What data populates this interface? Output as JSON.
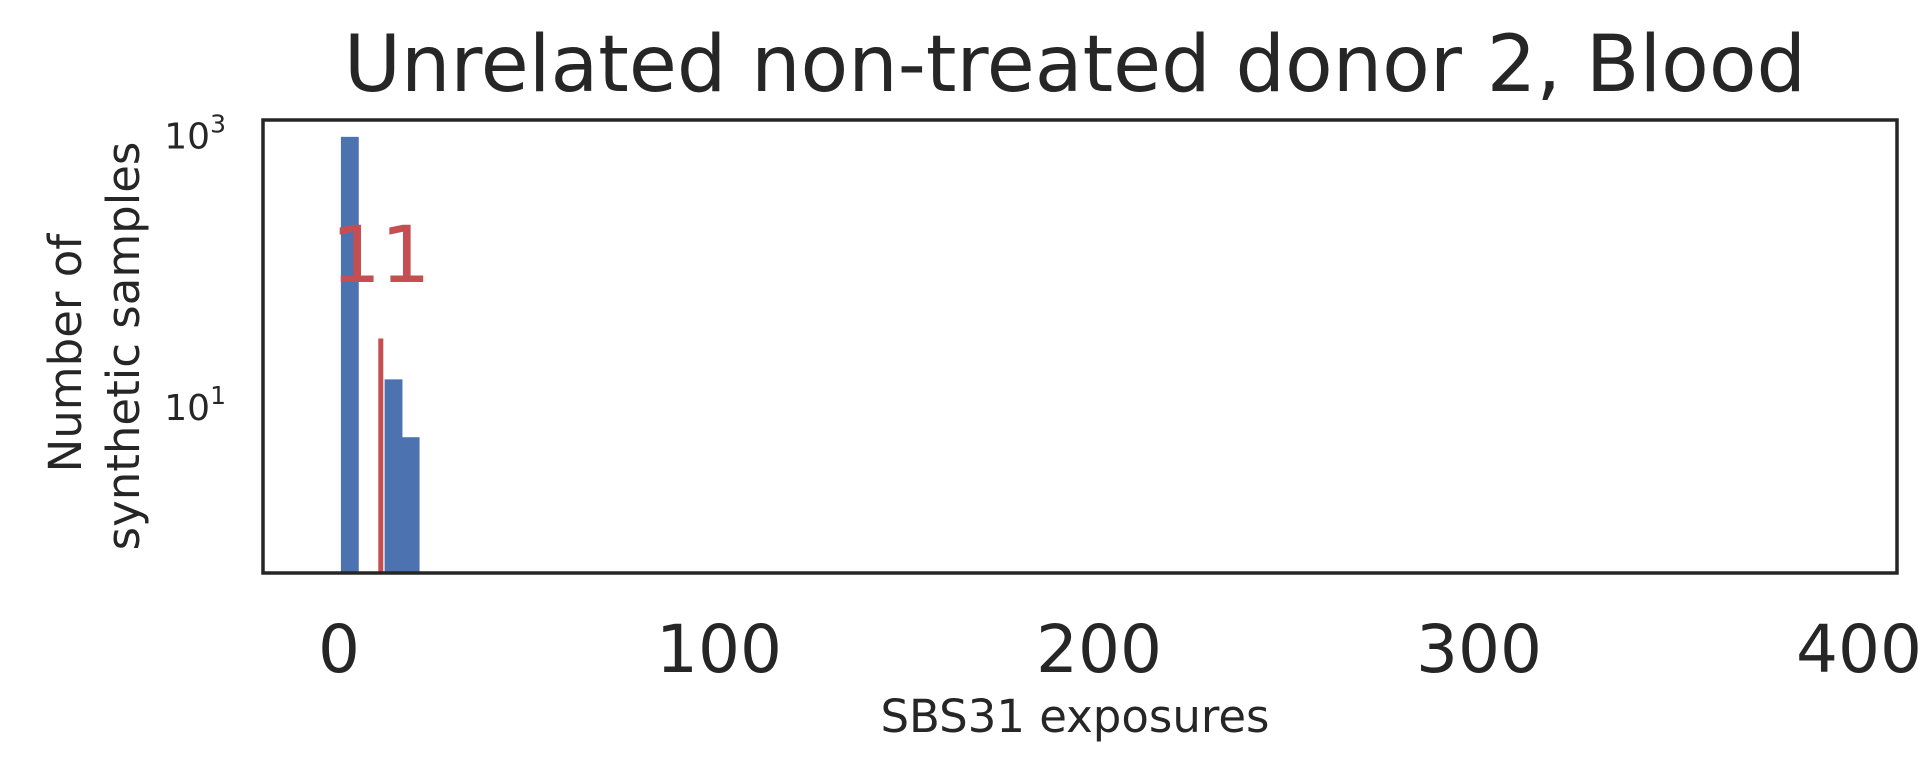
{
  "chart_data": {
    "type": "bar",
    "title": "Unrelated non-treated donor 2, Blood",
    "xlabel": "SBS31 exposures",
    "ylabel_lines": [
      "Number of",
      "synthetic samples"
    ],
    "xlim": [
      -20,
      410
    ],
    "ylim": [
      0.6,
      1300
    ],
    "yscale": "log",
    "xticks": [
      0,
      100,
      200,
      300,
      400
    ],
    "xtick_labels": [
      "0",
      "100",
      "200",
      "300",
      "400"
    ],
    "yticks": [
      {
        "value": 10,
        "base": "10",
        "exp": "1"
      },
      {
        "value": 1000,
        "base": "10",
        "exp": "3"
      }
    ],
    "bin_width": 4.7,
    "bins": [
      {
        "x_start": 0.5,
        "count": 977
      },
      {
        "x_start": 5.2,
        "count": 0
      },
      {
        "x_start": 9.9,
        "count": 0
      },
      {
        "x_start": 12.0,
        "count": 16
      },
      {
        "x_start": 16.5,
        "count": 6
      }
    ],
    "series_color": "#4c72b0",
    "grid": false,
    "observed": {
      "value": 11,
      "label": "11",
      "line_height": 32,
      "color": "#c44e52"
    }
  }
}
